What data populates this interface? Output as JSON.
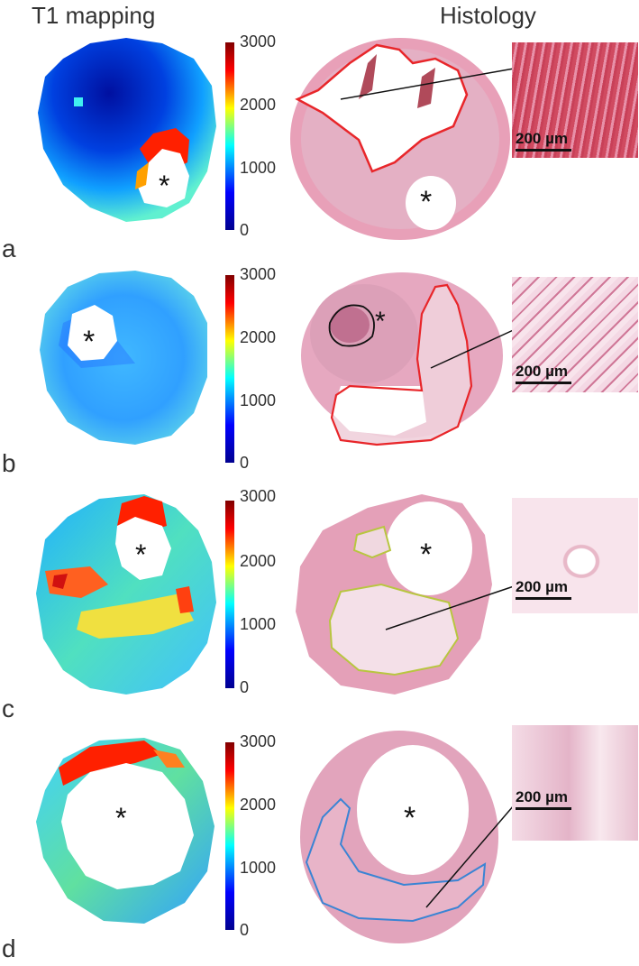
{
  "headers": {
    "left": "T1 mapping",
    "right": "Histology"
  },
  "colorbar": {
    "ticks": [
      "3000",
      "2000",
      "1000",
      "0"
    ],
    "colors": [
      "#00008f",
      "#0000ff",
      "#00ffff",
      "#ffff00",
      "#ff0000",
      "#800000"
    ]
  },
  "panels": [
    {
      "letter": "a",
      "scale_label": "200 µm",
      "roi_color": "#e8262a"
    },
    {
      "letter": "b",
      "scale_label": "200 µm",
      "roi_color": "#e8262a"
    },
    {
      "letter": "c",
      "scale_label": "200 µm",
      "roi_color": "#b8c640"
    },
    {
      "letter": "d",
      "scale_label": "200 µm",
      "roi_color": "#3a84d4"
    }
  ],
  "asterisk": "*"
}
